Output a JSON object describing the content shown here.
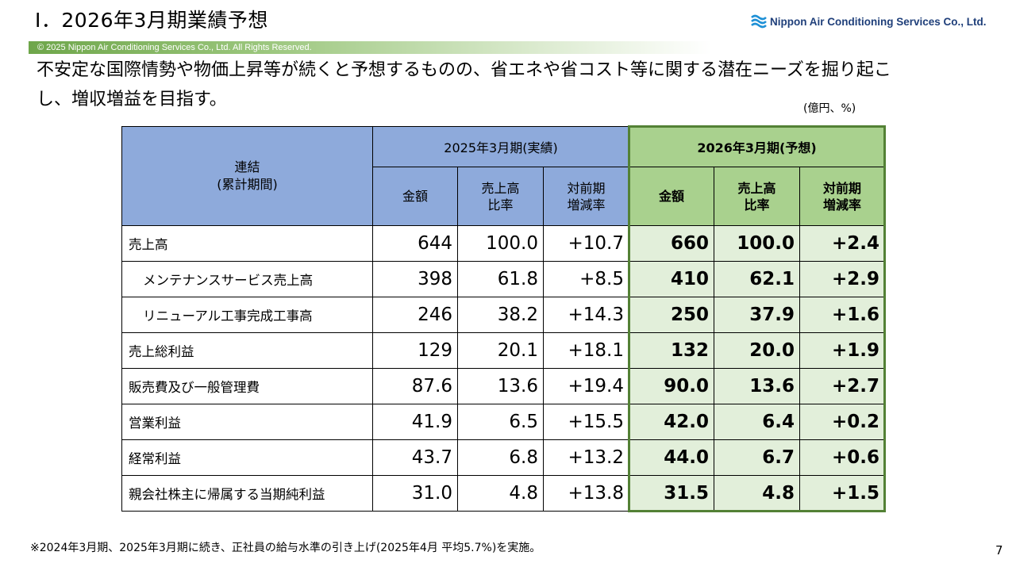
{
  "header": {
    "title": "Ⅰ．2026年3月期業績予想",
    "company_logo_text": "Nippon Air Conditioning Services Co., Ltd.",
    "copyright": "© 2025 Nippon Air Conditioning Services Co., Ltd. All Rights Reserved."
  },
  "lead_text": "不安定な国際情勢や物価上昇等が続くと予想するものの、省エネや省コスト等に関する潜在ニーズを掘り起こし、増収増益を目指す。",
  "unit": "(億円、%)",
  "table": {
    "corner_line1": "連結",
    "corner_line2": "(累計期間)",
    "prev_header": "2025年3月期(実績)",
    "fore_header": "2026年3月期(予想)",
    "sub_amount": "金額",
    "sub_ratio_1": "売上高",
    "sub_ratio_2": "比率",
    "sub_change_1": "対前期",
    "sub_change_2": "増減率",
    "rows": [
      {
        "label": "売上高",
        "p_amt": "644",
        "p_ratio": "100.0",
        "p_chg": "+10.7",
        "f_amt": "660",
        "f_ratio": "100.0",
        "f_chg": "+2.4"
      },
      {
        "label": "メンテナンスサービス売上高",
        "p_amt": "398",
        "p_ratio": "61.8",
        "p_chg": "+8.5",
        "f_amt": "410",
        "f_ratio": "62.1",
        "f_chg": "+2.9"
      },
      {
        "label": "リニューアル工事完成工事高",
        "p_amt": "246",
        "p_ratio": "38.2",
        "p_chg": "+14.3",
        "f_amt": "250",
        "f_ratio": "37.9",
        "f_chg": "+1.6"
      },
      {
        "label": "売上総利益",
        "p_amt": "129",
        "p_ratio": "20.1",
        "p_chg": "+18.1",
        "f_amt": "132",
        "f_ratio": "20.0",
        "f_chg": "+1.9"
      },
      {
        "label": "販売費及び一般管理費",
        "p_amt": "87.6",
        "p_ratio": "13.6",
        "p_chg": "+19.4",
        "f_amt": "90.0",
        "f_ratio": "13.6",
        "f_chg": "+2.7"
      },
      {
        "label": "営業利益",
        "p_amt": "41.9",
        "p_ratio": "6.5",
        "p_chg": "+15.5",
        "f_amt": "42.0",
        "f_ratio": "6.4",
        "f_chg": "+0.2"
      },
      {
        "label": "経常利益",
        "p_amt": "43.7",
        "p_ratio": "6.8",
        "p_chg": "+13.2",
        "f_amt": "44.0",
        "f_ratio": "6.7",
        "f_chg": "+0.6"
      },
      {
        "label": "親会社株主に帰属する当期純利益",
        "p_amt": "31.0",
        "p_ratio": "4.8",
        "p_chg": "+13.8",
        "f_amt": "31.5",
        "f_ratio": "4.8",
        "f_chg": "+1.5"
      }
    ]
  },
  "footnote": "※2024年3月期、2025年3月期に続き、正社員の給与水準の引き上げ(2025年4月 平均5.7%)を実施。",
  "page_number": "7",
  "colors": {
    "prev_header_bg": "#8eaadb",
    "fore_header_bg": "#a9d18e",
    "fore_cell_bg": "#e2efda",
    "fore_frame": "#538135",
    "logo_text": "#1f3f7a"
  }
}
